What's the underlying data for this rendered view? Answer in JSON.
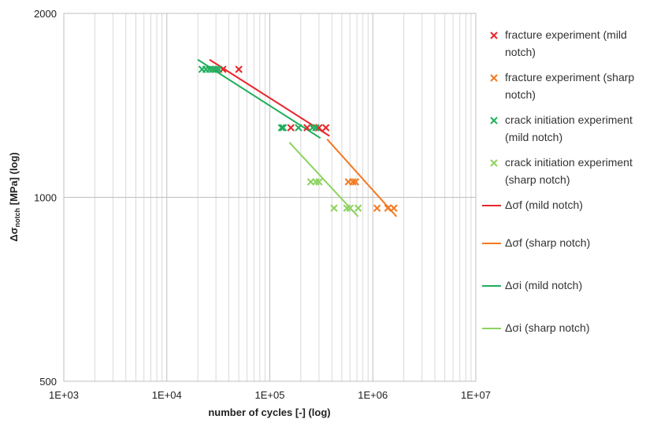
{
  "chart_data": {
    "type": "scatter",
    "xlabel": "number of cycles [-] (log)",
    "ylabel_main": "Δσ",
    "ylabel_sub": "notch",
    "ylabel_rest": " [MPa] (log)",
    "x_scale": "log",
    "y_scale": "log",
    "xlim": [
      1000,
      10000000
    ],
    "ylim": [
      500,
      2000
    ],
    "x_ticks": [
      1000,
      10000,
      100000,
      1000000,
      10000000
    ],
    "x_tick_labels": [
      "1E+03",
      "1E+04",
      "1E+05",
      "1E+06",
      "1E+07"
    ],
    "y_ticks": [
      500,
      1000,
      2000
    ],
    "y_tick_labels": [
      "500",
      "1000",
      "2000"
    ],
    "grid": true,
    "legend_position": "right",
    "colors": {
      "mild_fracture": "#e8262c",
      "sharp_fracture": "#f47920",
      "mild_initiation": "#1fae5c",
      "sharp_initiation": "#8dd35f"
    },
    "series": [
      {
        "name": "fracture experiment (mild notch)",
        "legend_lines": [
          "fracture experiment (mild",
          "notch)"
        ],
        "kind": "markers",
        "color_key": "mild_fracture",
        "points": [
          [
            30000,
            1620
          ],
          [
            35000,
            1620
          ],
          [
            50000,
            1620
          ],
          [
            160000,
            1300
          ],
          [
            230000,
            1300
          ],
          [
            300000,
            1300
          ],
          [
            350000,
            1300
          ]
        ]
      },
      {
        "name": "fracture experiment (sharp notch)",
        "legend_lines": [
          "fracture experiment (sharp",
          "notch)"
        ],
        "kind": "markers",
        "color_key": "sharp_fracture",
        "points": [
          [
            580000,
            1060
          ],
          [
            640000,
            1060
          ],
          [
            680000,
            1060
          ],
          [
            1100000,
            960
          ],
          [
            1400000,
            960
          ],
          [
            1600000,
            960
          ]
        ]
      },
      {
        "name": "crack initiation experiment (mild notch)",
        "legend_lines": [
          "crack initiation experiment",
          "(mild notch)"
        ],
        "kind": "markers",
        "color_key": "mild_initiation",
        "points": [
          [
            22000,
            1620
          ],
          [
            24000,
            1620
          ],
          [
            26000,
            1620
          ],
          [
            28000,
            1620
          ],
          [
            30000,
            1620
          ],
          [
            32000,
            1620
          ],
          [
            130000,
            1300
          ],
          [
            135000,
            1300
          ],
          [
            190000,
            1300
          ],
          [
            260000,
            1300
          ],
          [
            280000,
            1300
          ]
        ]
      },
      {
        "name": "crack initiation experiment (sharp notch)",
        "legend_lines": [
          "crack initiation experiment",
          "(sharp notch)"
        ],
        "kind": "markers",
        "color_key": "sharp_initiation",
        "points": [
          [
            250000,
            1060
          ],
          [
            280000,
            1060
          ],
          [
            300000,
            1060
          ],
          [
            420000,
            960
          ],
          [
            560000,
            960
          ],
          [
            600000,
            960
          ],
          [
            720000,
            960
          ]
        ]
      },
      {
        "name": "Δσf (mild notch)",
        "legend_lines": [
          "Δσf (mild notch)"
        ],
        "kind": "line",
        "color_key": "mild_fracture",
        "points": [
          [
            26000,
            1680
          ],
          [
            380000,
            1260
          ]
        ]
      },
      {
        "name": "Δσf (sharp notch)",
        "legend_lines": [
          "Δσf (sharp notch)"
        ],
        "kind": "line",
        "color_key": "sharp_fracture",
        "points": [
          [
            360000,
            1245
          ],
          [
            1700000,
            930
          ]
        ]
      },
      {
        "name": "Δσi (mild notch)",
        "legend_lines": [
          "Δσi (mild notch)"
        ],
        "kind": "line",
        "color_key": "mild_initiation",
        "points": [
          [
            20000,
            1680
          ],
          [
            310000,
            1250
          ]
        ]
      },
      {
        "name": "Δσi (sharp notch)",
        "legend_lines": [
          "Δσi (sharp notch)"
        ],
        "kind": "line",
        "color_key": "sharp_initiation",
        "points": [
          [
            155000,
            1230
          ],
          [
            720000,
            930
          ]
        ]
      }
    ]
  }
}
